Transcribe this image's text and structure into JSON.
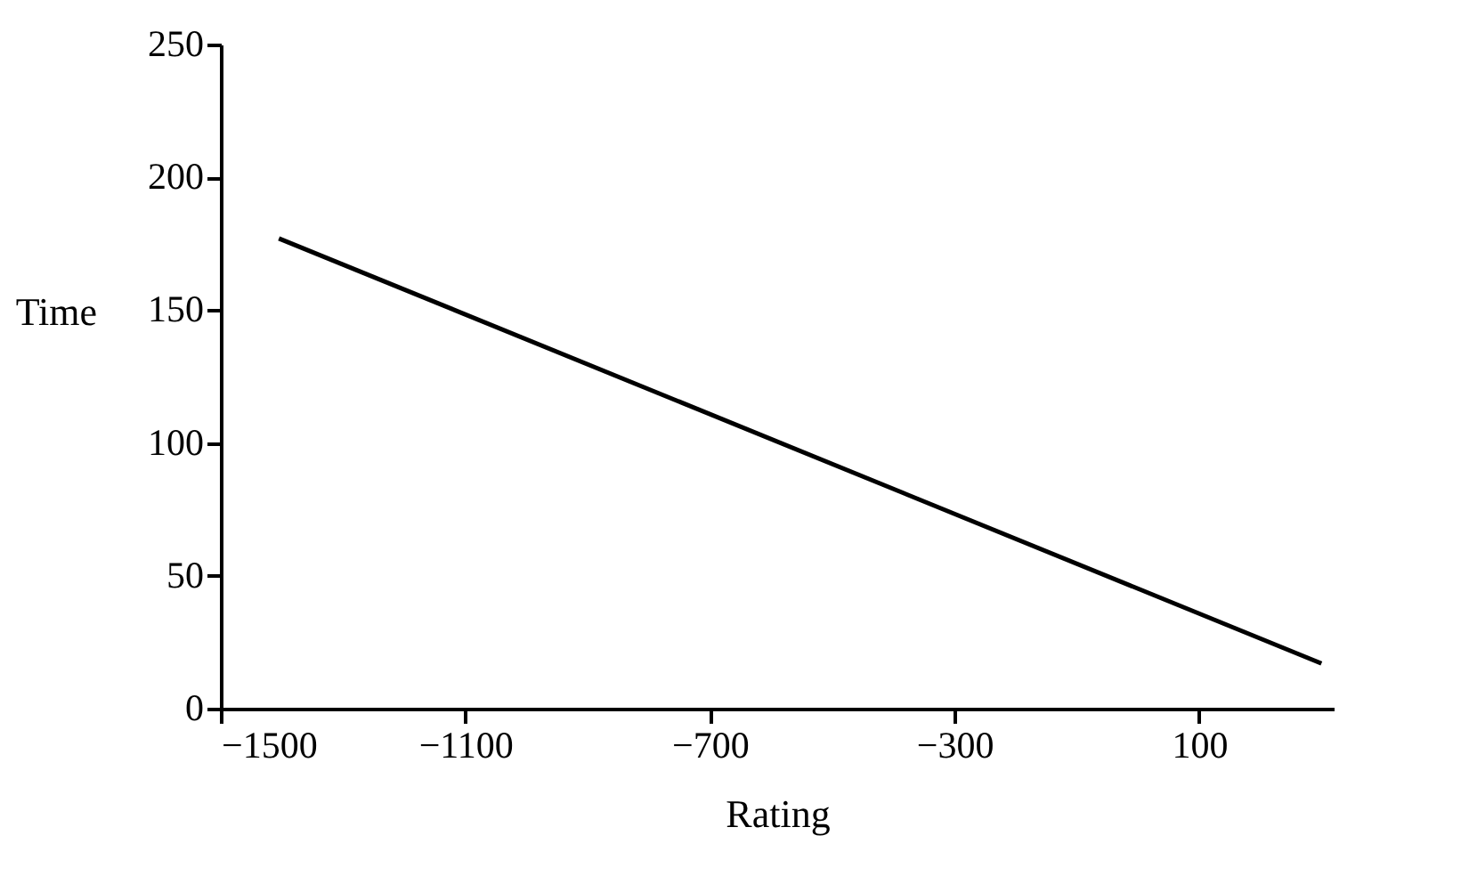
{
  "chart_data": {
    "type": "line",
    "xlabel": "Rating",
    "ylabel": "Time",
    "x": [
      -1405,
      300
    ],
    "series": [
      {
        "color": "#000000",
        "values": [
          177,
          17
        ]
      }
    ],
    "xlim": [
      -1500,
      320
    ],
    "xticks": [
      {
        "value": -1500,
        "label": "−1500"
      },
      {
        "value": -1100,
        "label": "−1100"
      },
      {
        "value": -700,
        "label": "−700"
      },
      {
        "value": -300,
        "label": "−300"
      },
      100
    ],
    "ylim": [
      0,
      250
    ],
    "yticks": [
      0,
      50,
      100,
      150,
      200,
      250
    ],
    "grid": false,
    "marker": "none",
    "line_style": "solid"
  }
}
